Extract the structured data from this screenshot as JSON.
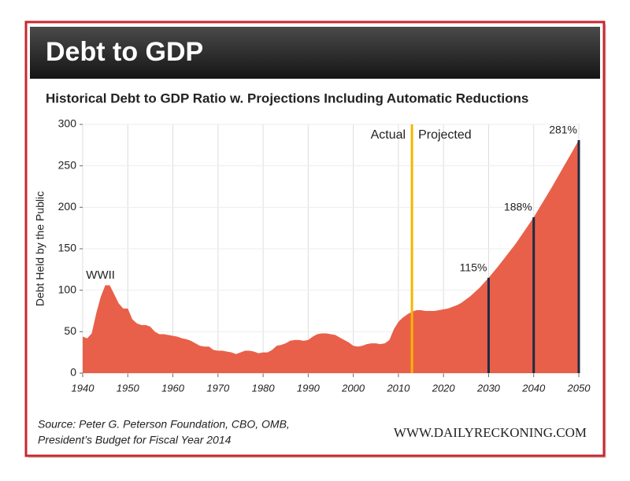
{
  "chart_data": {
    "type": "area",
    "title": "Debt to GDP",
    "subtitle": "Historical Debt to GDP Ratio w. Projections Including Automatic Reductions",
    "y_label": "Debt Held by the Public",
    "source": [
      "Source: Peter G. Peterson Foundation, CBO, OMB,",
      "President’s Budget for Fiscal Year 2014"
    ],
    "brand": "WWW.DAILYRECKONING.COM",
    "color": "#e8604a",
    "grid": true,
    "x": [
      1940,
      1941,
      1942,
      1943,
      1944,
      1945,
      1946,
      1947,
      1948,
      1949,
      1950,
      1951,
      1952,
      1953,
      1954,
      1955,
      1956,
      1957,
      1958,
      1959,
      1960,
      1961,
      1962,
      1963,
      1964,
      1965,
      1966,
      1967,
      1968,
      1969,
      1970,
      1971,
      1972,
      1973,
      1974,
      1975,
      1976,
      1977,
      1978,
      1979,
      1980,
      1981,
      1982,
      1983,
      1984,
      1985,
      1986,
      1987,
      1988,
      1989,
      1990,
      1991,
      1992,
      1993,
      1994,
      1995,
      1996,
      1997,
      1998,
      1999,
      2000,
      2001,
      2002,
      2003,
      2004,
      2005,
      2006,
      2007,
      2008,
      2009,
      2010,
      2011,
      2012,
      2013,
      2014,
      2015,
      2016,
      2017,
      2018,
      2019,
      2020,
      2021,
      2022,
      2023,
      2024,
      2025,
      2026,
      2027,
      2028,
      2029,
      2030,
      2032,
      2034,
      2036,
      2038,
      2040,
      2042,
      2044,
      2046,
      2048,
      2050
    ],
    "values": [
      44,
      42,
      48,
      72,
      92,
      106,
      106,
      95,
      84,
      78,
      78,
      65,
      60,
      58,
      58,
      56,
      50,
      47,
      47,
      46,
      45,
      44,
      42,
      41,
      39,
      36,
      33,
      32,
      32,
      28,
      27,
      27,
      26,
      25,
      23,
      25,
      27,
      27,
      26,
      24,
      25,
      25,
      28,
      33,
      34,
      36,
      39,
      40,
      40,
      39,
      40,
      44,
      47,
      48,
      48,
      47,
      46,
      43,
      40,
      37,
      33,
      32,
      33,
      35,
      36,
      36,
      35,
      36,
      40,
      53,
      62,
      67,
      71,
      74,
      76,
      76,
      75,
      75,
      75,
      76,
      77,
      78,
      80,
      82,
      85,
      89,
      93,
      98,
      103,
      109,
      115,
      128,
      142,
      156,
      172,
      188,
      206,
      224,
      243,
      262,
      281
    ],
    "xlim": [
      1940,
      2050
    ],
    "ylim": [
      0,
      300
    ],
    "xticks": [
      1940,
      1950,
      1960,
      1970,
      1980,
      1990,
      2000,
      2010,
      2020,
      2030,
      2040,
      2050
    ],
    "yticks": [
      0,
      50,
      100,
      150,
      200,
      250,
      300
    ],
    "annotations": [
      {
        "text": "WWII",
        "x": 1945
      }
    ],
    "divider": {
      "x": 2013,
      "left_label": "Actual",
      "right_label": "Projected",
      "color": "#f7b500"
    },
    "markers": [
      {
        "x": 2030,
        "value": 115,
        "label": "115%"
      },
      {
        "x": 2040,
        "value": 188,
        "label": "188%"
      },
      {
        "x": 2050,
        "value": 281,
        "label": "281%"
      }
    ]
  }
}
